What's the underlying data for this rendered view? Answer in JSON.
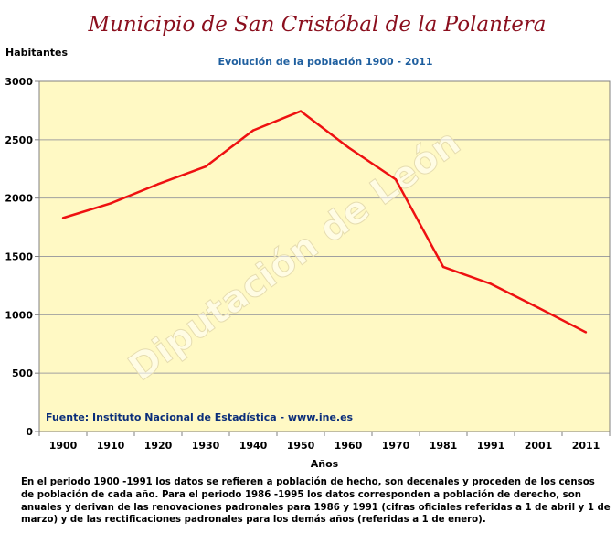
{
  "title": "Municipio de San Cristóbal de la Polantera",
  "chart_data": {
    "type": "line",
    "title": "Evolución de la población 1900 - 2011",
    "ylabel": "Habitantes",
    "xlabel": "Años",
    "categories": [
      "1900",
      "1910",
      "1920",
      "1930",
      "1940",
      "1950",
      "1960",
      "1970",
      "1981",
      "1991",
      "2001",
      "2011"
    ],
    "series": [
      {
        "values": [
          1830,
          1955,
          2120,
          2270,
          2580,
          2745,
          2435,
          2160,
          1410,
          1265,
          1060,
          850
        ],
        "color": "#ee1111"
      }
    ],
    "ylim": [
      0,
      3000
    ],
    "yticks": [
      0,
      500,
      1000,
      1500,
      2000,
      2500,
      3000
    ],
    "grid": true,
    "plot_background": "#fff9c4",
    "source": "Fuente: Instituto Nacional de Estadística - www.ine.es",
    "watermark": "Diputación de León"
  },
  "note": "En el periodo 1900 -1991 los datos se refieren a población de hecho, son decenales y proceden de los censos de población de cada año. Para el periodo 1986 -1995 los datos corresponden a población de derecho, son anuales y derivan de las renovaciones padronales para 1986 y 1991 (cifras oficiales referidas a 1 de abril y 1 de marzo) y de las rectificaciones padronales para los demás años (referidas a 1 de enero)."
}
